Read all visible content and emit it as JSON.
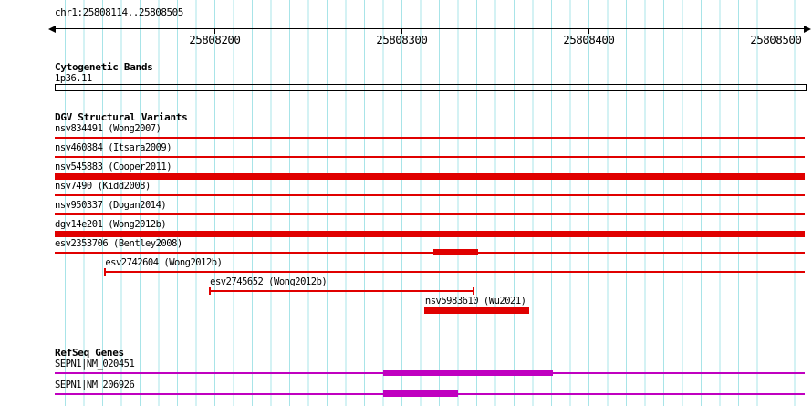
{
  "header": {
    "region": "chr1:25808114..25808505"
  },
  "ruler": {
    "start": 25808114,
    "end": 25808505,
    "ticks": [
      {
        "pos": 25808200,
        "label": "25808200"
      },
      {
        "pos": 25808300,
        "label": "25808300"
      },
      {
        "pos": 25808400,
        "label": "25808400"
      },
      {
        "pos": 25808500,
        "label": "25808500"
      }
    ]
  },
  "colors": {
    "grid": "#a8e4e8",
    "variant": "#e00000",
    "gene": "#c000c0",
    "ink": "#000000"
  },
  "sections": [
    {
      "title": "Cytogenetic Bands",
      "type": "bands",
      "features": [
        {
          "label": "1p36.11",
          "glyph": "band",
          "start": 25808114,
          "end": 25808505,
          "clip": "both"
        }
      ]
    },
    {
      "title": "DGV Structural Variants",
      "type": "variants",
      "features": [
        {
          "label": "nsv834491 (Wong2007)",
          "glyph": "line",
          "start": 25808114,
          "end": 25808505,
          "clip": "both"
        },
        {
          "label": "nsv460884 (Itsara2009)",
          "glyph": "line",
          "start": 25808114,
          "end": 25808505,
          "clip": "both"
        },
        {
          "label": "nsv545883 (Cooper2011)",
          "glyph": "bar",
          "start": 25808114,
          "end": 25808505,
          "clip": "both"
        },
        {
          "label": "nsv7490 (Kidd2008)",
          "glyph": "line",
          "start": 25808114,
          "end": 25808505,
          "clip": "both"
        },
        {
          "label": "nsv950337 (Dogan2014)",
          "glyph": "line",
          "start": 25808114,
          "end": 25808505,
          "clip": "both"
        },
        {
          "label": "dgv14e201 (Wong2012b)",
          "glyph": "bar",
          "start": 25808114,
          "end": 25808505,
          "clip": "both"
        },
        {
          "label": "esv2353706 (Bentley2008)",
          "glyph": "line",
          "start": 25808114,
          "end": 25808505,
          "clip": "both",
          "blocks": [
            [
              25808317,
              25808341
            ]
          ]
        },
        {
          "label": "esv2742604 (Wong2012b)",
          "glyph": "line",
          "start": 25808141,
          "end": 25808505,
          "clip": "right",
          "caps": [
            "left"
          ],
          "label_at_feature": true
        },
        {
          "label": "esv2745652 (Wong2012b)",
          "glyph": "line",
          "start": 25808197,
          "end": 25808339,
          "clip": "none",
          "caps": [
            "left",
            "right"
          ],
          "label_at_feature": true
        },
        {
          "label": "nsv5983610 (Wu2021)",
          "glyph": "bar",
          "start": 25808312,
          "end": 25808368,
          "clip": "none",
          "label_at_feature": true
        }
      ]
    },
    {
      "title": "RefSeq Genes",
      "type": "genes",
      "features": [
        {
          "label": "SEPN1|NM_020451",
          "glyph": "gene",
          "start": 25808114,
          "end": 25808505,
          "clip": "both",
          "blocks": [
            [
              25808290,
              25808381
            ]
          ]
        },
        {
          "label": "SEPN1|NM_206926",
          "glyph": "gene",
          "start": 25808114,
          "end": 25808505,
          "clip": "both",
          "blocks": [
            [
              25808290,
              25808330
            ]
          ]
        }
      ]
    }
  ]
}
